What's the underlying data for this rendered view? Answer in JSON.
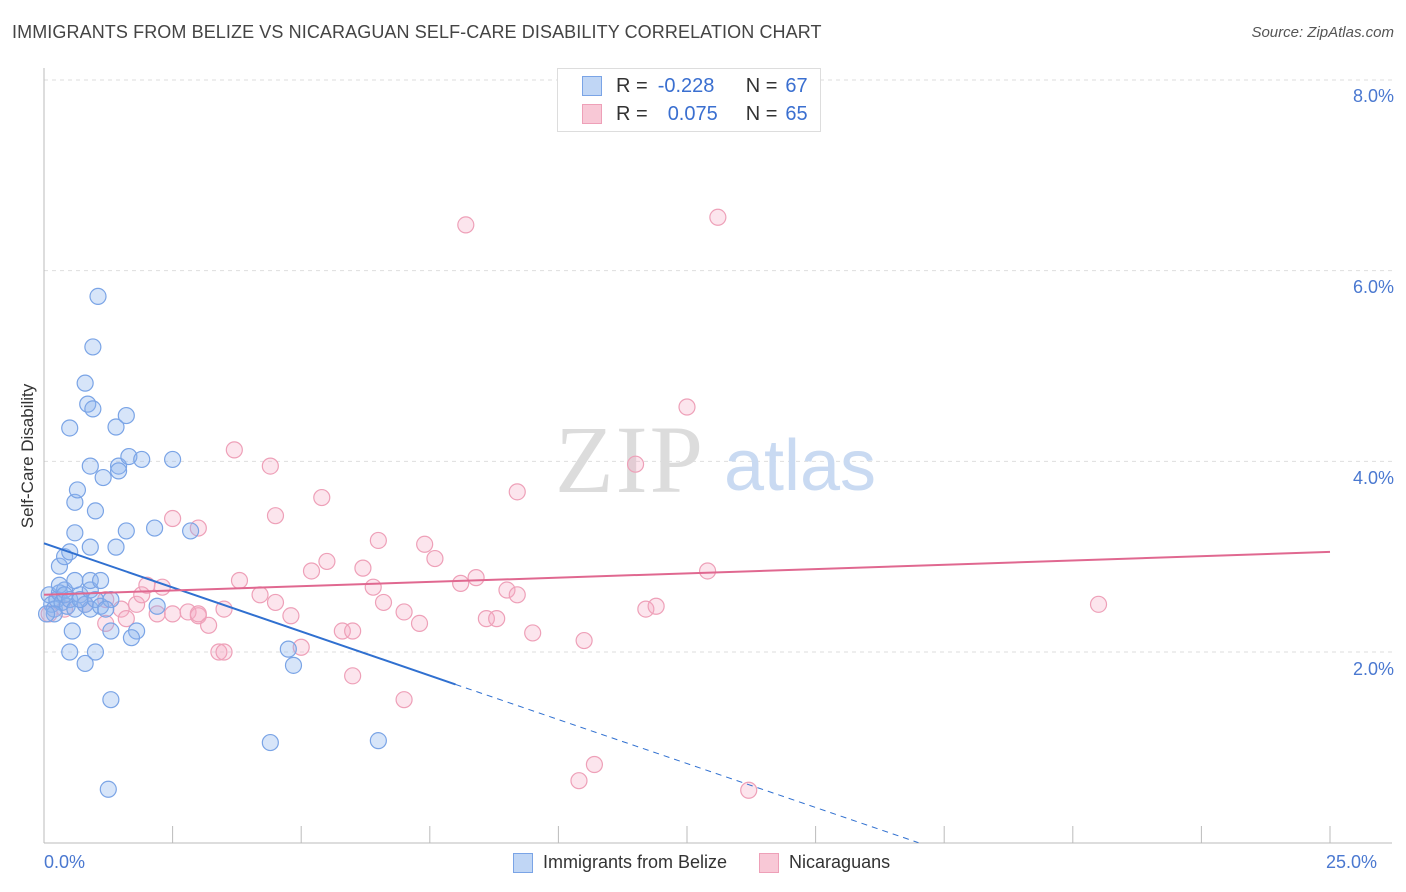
{
  "title": "IMMIGRANTS FROM BELIZE VS NICARAGUAN SELF-CARE DISABILITY CORRELATION CHART",
  "source": "Source: ZipAtlas.com",
  "watermark": {
    "zip": "ZIP",
    "atlas": "atlas"
  },
  "legend_top": {
    "rows": [
      {
        "r_label": "R =",
        "r_value": "-0.228",
        "n_label": "N =",
        "n_value": "67"
      },
      {
        "r_label": "R =",
        "r_value": "0.075",
        "n_label": "N =",
        "n_value": "65"
      }
    ]
  },
  "colors": {
    "belize": "#6d9ee8",
    "nicaraguans": "#f0a0b8",
    "belize_line": "#3070d0",
    "nic_line": "#e06890",
    "axis_label": "#4a78d0"
  },
  "chart_data": {
    "type": "scatter",
    "title": "IMMIGRANTS FROM BELIZE VS NICARAGUAN SELF-CARE DISABILITY CORRELATION CHART",
    "ylabel": "Self-Care Disability",
    "xlabel": "",
    "xlim": [
      0,
      25
    ],
    "ylim": [
      0,
      8.2
    ],
    "x_tick_labels": [
      "0.0%",
      "25.0%"
    ],
    "y_ticks": [
      2,
      4,
      6,
      8
    ],
    "y_tick_labels": [
      "2.0%",
      "4.0%",
      "6.0%",
      "8.0%"
    ],
    "grid": true,
    "legend_position": "bottom",
    "series": [
      {
        "name": "Immigrants from Belize",
        "r": -0.228,
        "n": 67,
        "trend": {
          "x": [
            0,
            8.0
          ],
          "y": [
            3.14,
            1.66
          ],
          "dashed_to": [
            17,
            0
          ]
        },
        "points": [
          [
            0.1,
            2.6
          ],
          [
            0.15,
            2.5
          ],
          [
            0.2,
            2.45
          ],
          [
            0.25,
            2.55
          ],
          [
            0.3,
            2.62
          ],
          [
            0.35,
            2.52
          ],
          [
            0.4,
            2.65
          ],
          [
            0.45,
            2.48
          ],
          [
            0.2,
            2.4
          ],
          [
            0.3,
            2.7
          ],
          [
            0.4,
            2.6
          ],
          [
            0.5,
            2.55
          ],
          [
            0.6,
            2.45
          ],
          [
            0.7,
            2.6
          ],
          [
            0.8,
            2.5
          ],
          [
            0.9,
            2.45
          ],
          [
            0.3,
            2.9
          ],
          [
            0.4,
            3.0
          ],
          [
            0.5,
            3.05
          ],
          [
            0.6,
            2.75
          ],
          [
            0.7,
            2.55
          ],
          [
            0.9,
            2.65
          ],
          [
            1.0,
            2.55
          ],
          [
            1.1,
            2.48
          ],
          [
            0.55,
            2.22
          ],
          [
            0.5,
            2.0
          ],
          [
            0.8,
            1.88
          ],
          [
            1.0,
            2.0
          ],
          [
            1.3,
            2.22
          ],
          [
            1.8,
            2.22
          ],
          [
            1.7,
            2.15
          ],
          [
            2.2,
            2.48
          ],
          [
            0.9,
            2.75
          ],
          [
            1.1,
            2.75
          ],
          [
            1.3,
            2.55
          ],
          [
            1.2,
            2.45
          ],
          [
            0.6,
            3.25
          ],
          [
            0.6,
            3.57
          ],
          [
            0.65,
            3.7
          ],
          [
            0.9,
            3.1
          ],
          [
            1.0,
            3.48
          ],
          [
            1.4,
            3.1
          ],
          [
            1.6,
            3.27
          ],
          [
            2.15,
            3.3
          ],
          [
            2.85,
            3.27
          ],
          [
            0.9,
            3.95
          ],
          [
            1.15,
            3.83
          ],
          [
            1.45,
            3.95
          ],
          [
            1.45,
            3.9
          ],
          [
            1.65,
            4.05
          ],
          [
            1.9,
            4.02
          ],
          [
            2.5,
            4.02
          ],
          [
            0.5,
            4.35
          ],
          [
            1.4,
            4.36
          ],
          [
            1.6,
            4.48
          ],
          [
            0.85,
            4.6
          ],
          [
            0.95,
            4.55
          ],
          [
            0.8,
            4.82
          ],
          [
            0.95,
            5.2
          ],
          [
            1.05,
            5.73
          ],
          [
            1.3,
            1.5
          ],
          [
            1.25,
            0.56
          ],
          [
            4.4,
            1.05
          ],
          [
            6.5,
            1.07
          ],
          [
            4.75,
            2.03
          ],
          [
            4.85,
            1.86
          ],
          [
            0.05,
            2.4
          ]
        ]
      },
      {
        "name": "Nicaraguans",
        "r": 0.075,
        "n": 65,
        "trend": {
          "x": [
            0,
            25
          ],
          "y": [
            2.6,
            3.05
          ]
        },
        "points": [
          [
            0.1,
            2.4
          ],
          [
            0.4,
            2.45
          ],
          [
            0.8,
            2.5
          ],
          [
            1.2,
            2.55
          ],
          [
            1.5,
            2.45
          ],
          [
            1.8,
            2.5
          ],
          [
            2.0,
            2.7
          ],
          [
            2.3,
            2.68
          ],
          [
            2.5,
            2.4
          ],
          [
            2.8,
            2.42
          ],
          [
            3.0,
            2.38
          ],
          [
            3.2,
            2.28
          ],
          [
            3.5,
            2.45
          ],
          [
            1.2,
            2.3
          ],
          [
            1.6,
            2.35
          ],
          [
            1.9,
            2.6
          ],
          [
            3.4,
            2.0
          ],
          [
            3.0,
            2.4
          ],
          [
            3.8,
            2.75
          ],
          [
            4.2,
            2.6
          ],
          [
            4.5,
            2.52
          ],
          [
            4.8,
            2.38
          ],
          [
            5.2,
            2.85
          ],
          [
            5.5,
            2.95
          ],
          [
            5.0,
            2.05
          ],
          [
            5.8,
            2.22
          ],
          [
            6.0,
            2.22
          ],
          [
            6.2,
            2.88
          ],
          [
            6.4,
            2.68
          ],
          [
            6.6,
            2.52
          ],
          [
            7.0,
            2.42
          ],
          [
            7.3,
            2.3
          ],
          [
            7.6,
            2.98
          ],
          [
            8.1,
            2.72
          ],
          [
            8.4,
            2.78
          ],
          [
            8.6,
            2.35
          ],
          [
            8.8,
            2.35
          ],
          [
            9.0,
            2.65
          ],
          [
            9.2,
            2.6
          ],
          [
            9.5,
            2.2
          ],
          [
            10.5,
            2.12
          ],
          [
            11.7,
            2.45
          ],
          [
            11.9,
            2.48
          ],
          [
            12.9,
            2.85
          ],
          [
            2.5,
            3.4
          ],
          [
            3.0,
            3.3
          ],
          [
            4.5,
            3.43
          ],
          [
            5.4,
            3.62
          ],
          [
            6.5,
            3.17
          ],
          [
            7.4,
            3.13
          ],
          [
            9.2,
            3.68
          ],
          [
            3.7,
            4.12
          ],
          [
            4.4,
            3.95
          ],
          [
            11.5,
            3.97
          ],
          [
            12.5,
            4.57
          ],
          [
            8.2,
            6.48
          ],
          [
            13.1,
            6.56
          ],
          [
            6.0,
            1.75
          ],
          [
            7.0,
            1.5
          ],
          [
            10.4,
            0.65
          ],
          [
            10.7,
            0.82
          ],
          [
            13.7,
            0.55
          ],
          [
            20.5,
            2.5
          ],
          [
            3.5,
            2.0
          ],
          [
            2.2,
            2.4
          ]
        ]
      }
    ]
  },
  "legend_bottom": {
    "items": [
      "Immigrants from Belize",
      "Nicaraguans"
    ]
  }
}
